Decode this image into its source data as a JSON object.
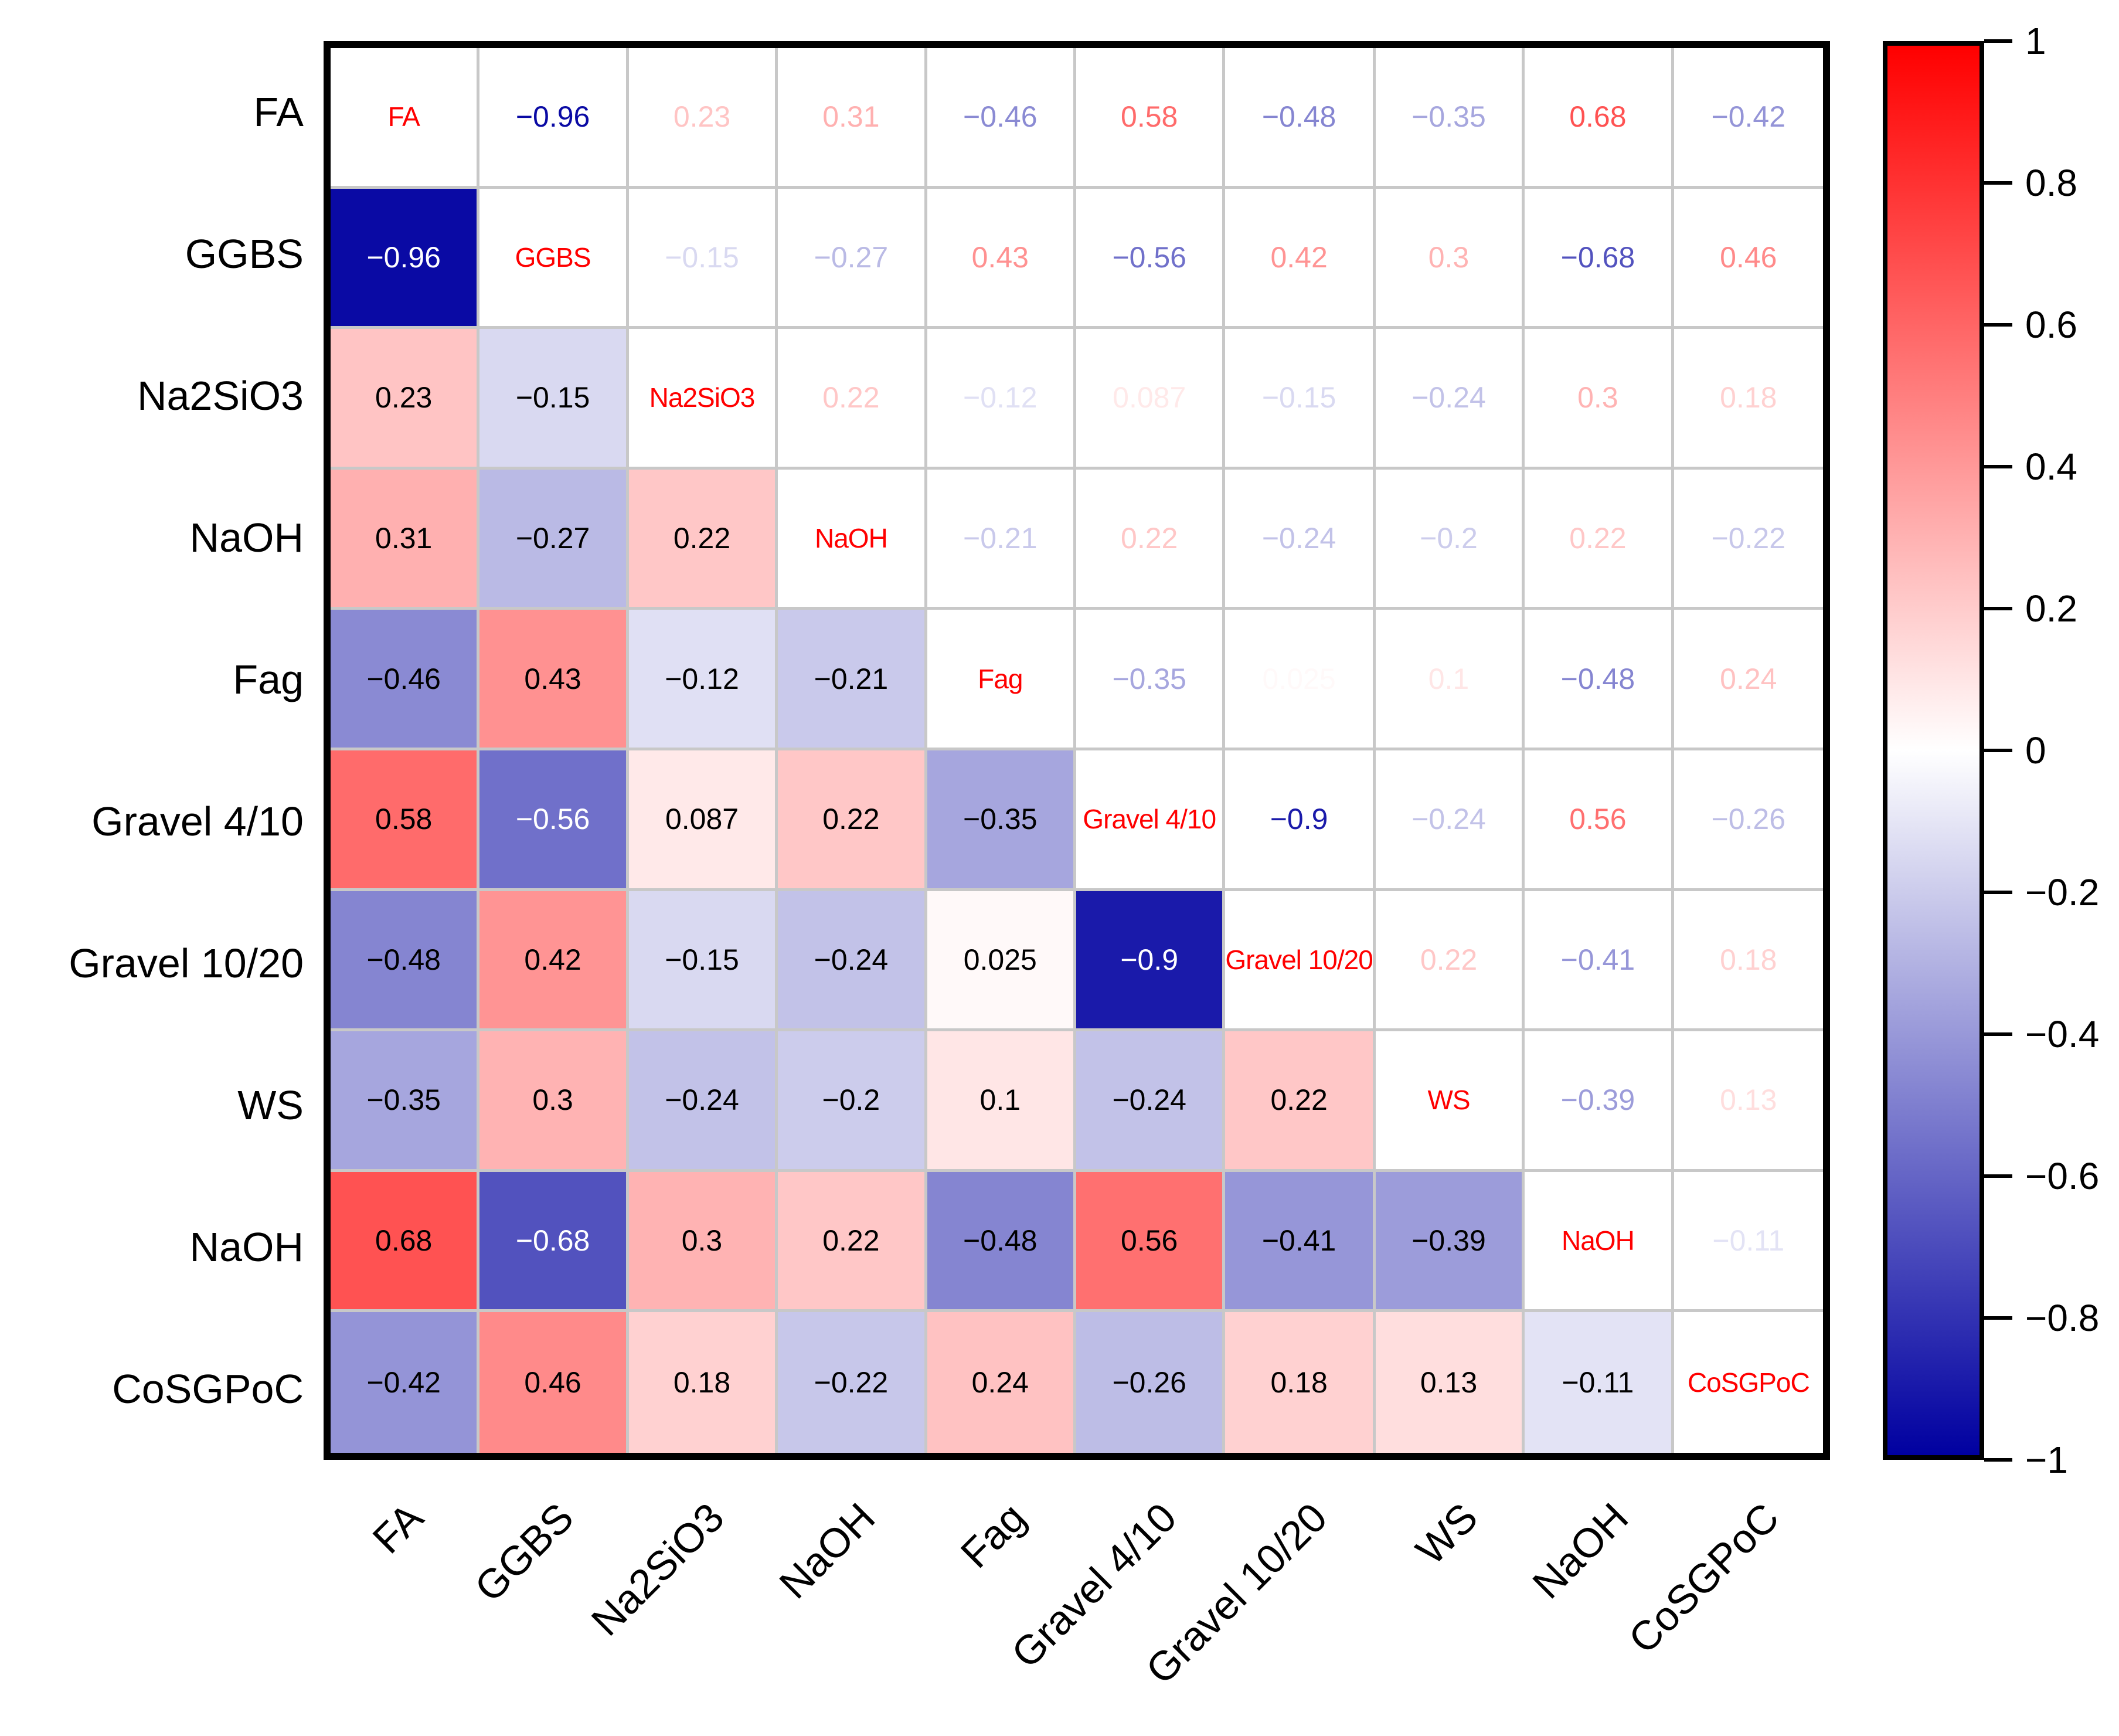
{
  "chart_data": {
    "type": "heatmap",
    "title": "",
    "variables": [
      "FA",
      "GGBS",
      "Na2SiO3",
      "NaOH",
      "Fag",
      "Gravel 4/10",
      "Gravel 10/20",
      "WS",
      "NaOH",
      "CoSGPoC"
    ],
    "lower_triangle_correlations": [
      [
        -0.96
      ],
      [
        0.23,
        -0.15
      ],
      [
        0.31,
        -0.27,
        0.22
      ],
      [
        -0.46,
        0.43,
        -0.12,
        -0.21
      ],
      [
        0.58,
        -0.56,
        0.087,
        0.22,
        -0.35
      ],
      [
        -0.48,
        0.42,
        -0.15,
        -0.24,
        0.025,
        -0.9
      ],
      [
        -0.35,
        0.3,
        -0.24,
        -0.2,
        0.1,
        -0.24,
        0.22
      ],
      [
        0.68,
        -0.68,
        0.3,
        0.22,
        -0.48,
        0.56,
        -0.41,
        -0.39
      ],
      [
        -0.42,
        0.46,
        0.18,
        -0.22,
        0.24,
        -0.26,
        0.18,
        0.13,
        -0.11
      ]
    ],
    "symmetric": true,
    "display": {
      "upper_triangle": "value text colored by colormap on white background",
      "lower_triangle": "cell filled by colormap, black text (white text on dark blue cells)",
      "diagonal": "variable name in red"
    },
    "colors": {
      "diagonal_label": "#ff0000",
      "colormap_positive_end": "#ff0000",
      "colormap_mid": "#ffffff",
      "colormap_negative_end": "#0000a0",
      "dark_cell_text": "#ffffff",
      "cell_text": "#000000"
    },
    "colorbar": {
      "min": -1,
      "max": 1,
      "tick_labels": [
        "1",
        "0.8",
        "0.6",
        "0.4",
        "0.2",
        "0",
        "-0.2",
        "-0.4",
        "-0.6",
        "-0.8",
        "-1"
      ],
      "position": "right"
    },
    "axis": {
      "x_labels_rotation_deg": -45,
      "grid": true
    }
  }
}
